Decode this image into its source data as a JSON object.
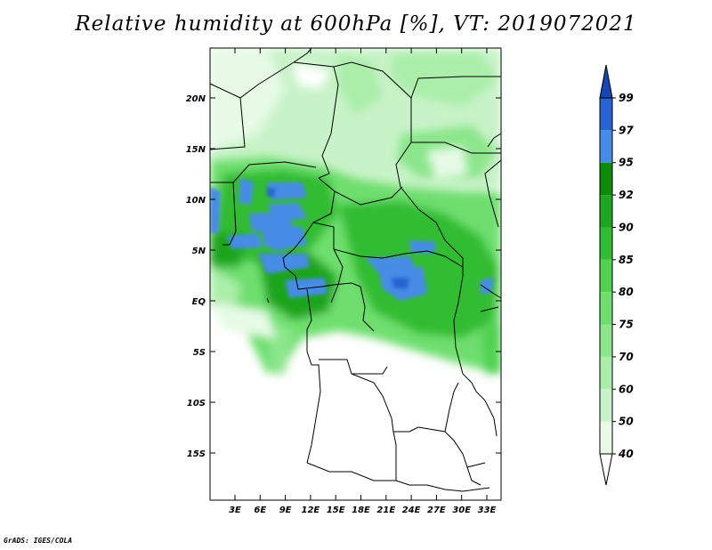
{
  "title": "Relative humidity at 600hPa [%], VT: 2019072021",
  "credit": "GrADS: IGES/COLA",
  "map": {
    "lat_labels": [
      "20N",
      "15N",
      "10N",
      "5N",
      "EQ",
      "5S",
      "10S",
      "15S"
    ],
    "lon_labels": [
      "3E",
      "6E",
      "9E",
      "12E",
      "15E",
      "18E",
      "21E",
      "24E",
      "27E",
      "30E",
      "33E"
    ]
  },
  "colorbar": {
    "levels": [
      "40",
      "50",
      "60",
      "70",
      "75",
      "80",
      "85",
      "90",
      "92",
      "95",
      "97",
      "99"
    ],
    "colors": [
      "#ffffff",
      "#e6fae6",
      "#c8f3c8",
      "#aaeeaa",
      "#8ce68c",
      "#6edf6e",
      "#50d250",
      "#32bc32",
      "#1fa51f",
      "#0a8c0a",
      "#468ce6",
      "#2864d2",
      "#1446b4"
    ]
  }
}
